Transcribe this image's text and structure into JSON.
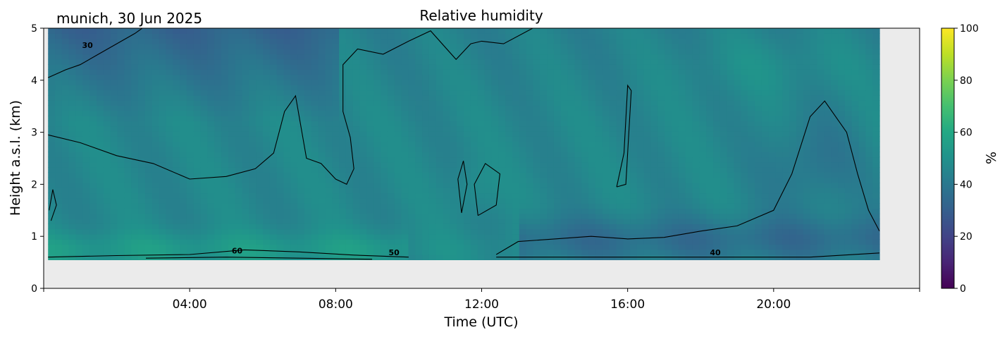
{
  "chart_data": {
    "type": "heatmap",
    "title": "Relative humidity",
    "subtitle": "munich, 30 Jun 2025",
    "xlabel": "Time (UTC)",
    "ylabel": "Height a.s.l. (km)",
    "x_ticks": [
      "04:00",
      "08:00",
      "12:00",
      "16:00",
      "20:00"
    ],
    "x_tick_hours": [
      4,
      8,
      12,
      16,
      20
    ],
    "xlim_hours": [
      0,
      24
    ],
    "data_xrange_hours": [
      0.12,
      22.9
    ],
    "y_ticks": [
      0,
      1,
      2,
      3,
      4,
      5
    ],
    "ylim": [
      0,
      5
    ],
    "data_yrange": [
      0.55,
      5
    ],
    "colorbar": {
      "label": "%",
      "ticks": [
        0,
        20,
        40,
        60,
        80,
        100
      ],
      "range": [
        0,
        100
      ],
      "colormap": "viridis"
    },
    "contour_levels": [
      30,
      40,
      50,
      60
    ],
    "contour_labels": [
      {
        "text": "30",
        "x_hour": 1.2,
        "y": 4.62
      },
      {
        "text": "60",
        "x_hour": 5.3,
        "y": 0.67
      },
      {
        "text": "50",
        "x_hour": 9.6,
        "y": 0.64
      },
      {
        "text": "40",
        "x_hour": 18.4,
        "y": 0.64
      }
    ],
    "grid": false,
    "background_no_data": "#ebebeb"
  }
}
